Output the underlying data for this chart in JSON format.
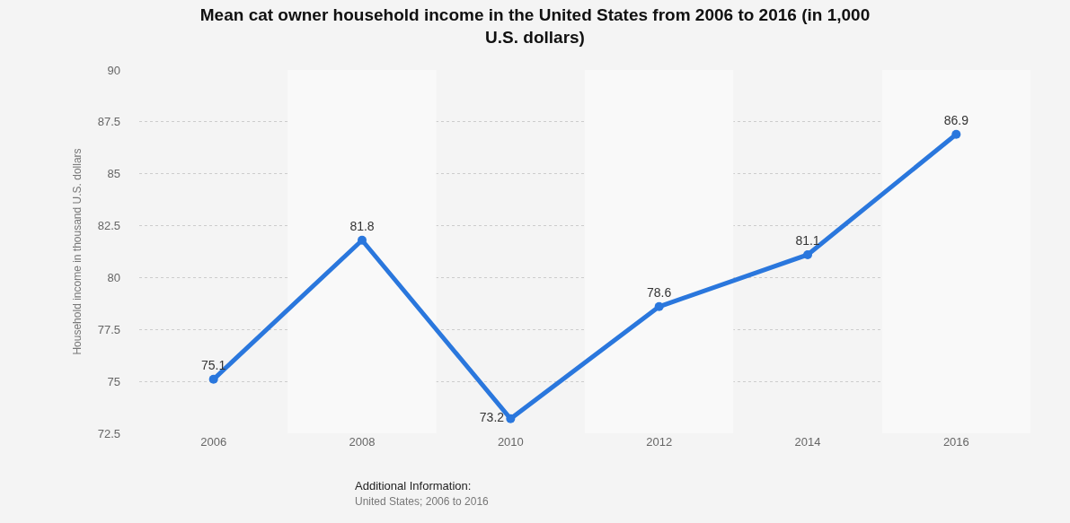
{
  "chart_data": {
    "type": "line",
    "title": "Mean cat owner household income in the United States from 2006 to 2016 (in 1,000 U.S. dollars)",
    "ylabel": "Household income in thousand U.S. dollars",
    "x": [
      2006,
      2008,
      2010,
      2012,
      2014,
      2016
    ],
    "series": [
      {
        "color": "#2a77dd",
        "values": [
          75.1,
          81.8,
          73.2,
          78.6,
          81.1,
          86.9
        ]
      }
    ],
    "xlim": [
      2005,
      2017
    ],
    "xticks": [
      2006,
      2008,
      2010,
      2012,
      2014,
      2016
    ],
    "ylim": [
      72.5,
      90
    ],
    "yticks": [
      72.5,
      75,
      77.5,
      80,
      82.5,
      85,
      87.5,
      90
    ],
    "bands": [
      {
        "axis": "x",
        "from": 2007,
        "to": 2009,
        "color": "#f9f9f9"
      },
      {
        "axis": "x",
        "from": 2011,
        "to": 2013,
        "color": "#f9f9f9"
      },
      {
        "axis": "x",
        "from": 2015,
        "to": 2017,
        "color": "#f9f9f9"
      }
    ],
    "grid": "y",
    "marker": "circle",
    "line_style": "solid",
    "data_labels": true,
    "annotations": [
      "Additional Information:",
      "United States; 2006 to 2016"
    ]
  }
}
